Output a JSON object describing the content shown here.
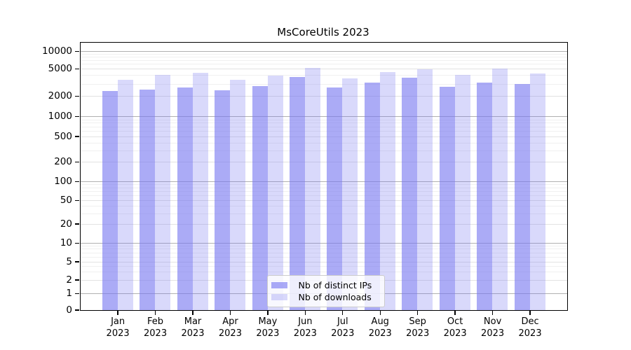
{
  "chart_data": {
    "type": "bar",
    "title": "MsCoreUtils 2023",
    "categories": [
      "Jan 2023",
      "Feb 2023",
      "Mar 2023",
      "Apr 2023",
      "May 2023",
      "Jun 2023",
      "Jul 2023",
      "Aug 2023",
      "Sep 2023",
      "Oct 2023",
      "Nov 2023",
      "Dec 2023"
    ],
    "x_tick_line1": [
      "Jan",
      "Feb",
      "Mar",
      "Apr",
      "May",
      "Jun",
      "Jul",
      "Aug",
      "Sep",
      "Oct",
      "Nov",
      "Dec"
    ],
    "x_tick_line2": "2023",
    "series": [
      {
        "name": "Nb of distinct IPs",
        "color": "rgba(120,120,240,0.62)",
        "values": [
          2370,
          2510,
          2690,
          2470,
          2820,
          3870,
          2670,
          3180,
          3790,
          2780,
          3160,
          3000
        ]
      },
      {
        "name": "Nb of downloads",
        "color": "rgba(120,120,240,0.28)",
        "values": [
          3520,
          4070,
          4380,
          3460,
          4050,
          5190,
          3650,
          4480,
          5010,
          4120,
          5080,
          4350
        ]
      }
    ],
    "yscale": "symlog",
    "yticks": [
      0,
      1,
      2,
      5,
      10,
      20,
      50,
      100,
      200,
      500,
      1000,
      2000,
      5000,
      10000
    ],
    "ylim": [
      0,
      10000
    ],
    "grid": true,
    "legend": {
      "position": "bottom-center",
      "items": [
        "Nb of distinct IPs",
        "Nb of downloads"
      ]
    },
    "colors": {
      "axis": "#000000",
      "grid_major": "#b0b0b0",
      "grid_sub": "#e2e2e2",
      "grid_minor": "#f0f0f0"
    }
  }
}
